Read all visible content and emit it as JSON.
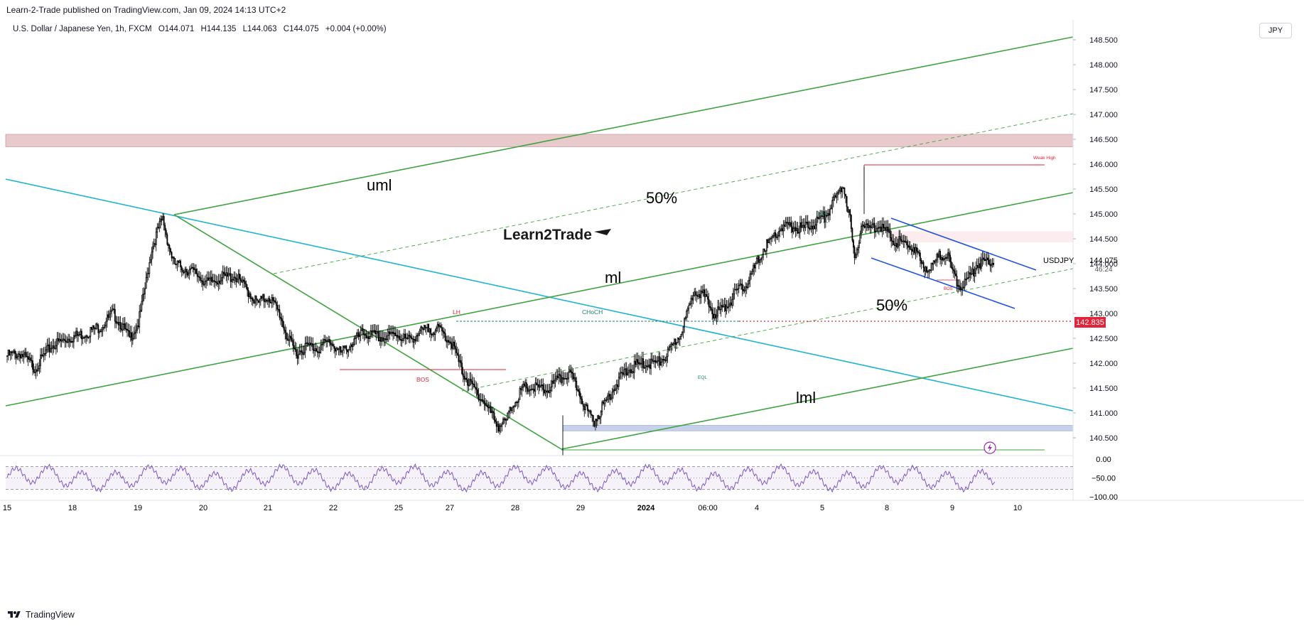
{
  "header": {
    "published": "Learn-2-Trade published on TradingView.com, Jan 09, 2024 14:13 UTC+2",
    "legend": {
      "symbol": "U.S. Dollar / Japanese Yen, 1h, FXCM",
      "open": "O144.071",
      "high": "H144.135",
      "low": "L144.063",
      "close": "C144.075",
      "change": "+0.004 (+0.00%)"
    },
    "currency_button": "JPY"
  },
  "footer": {
    "brand": "TradingView"
  },
  "colors": {
    "green_line": "#3fa33f",
    "cyan_line": "#1fb3d2",
    "blue_channel": "#2054e0",
    "red_level": "#e0253a",
    "supply_zone": "#e8c9cc",
    "demand_zone": "#c7d1ea",
    "rsi": "#7e57c2",
    "candle": "#000000"
  },
  "chart_data": {
    "type": "candlestick",
    "symbol": "USDJPY",
    "timeframe": "1h",
    "price_axis": {
      "ticks": [
        "148.500",
        "148.000",
        "147.500",
        "147.000",
        "146.500",
        "146.000",
        "145.500",
        "145.000",
        "144.500",
        "144.000",
        "143.500",
        "143.000",
        "142.500",
        "142.000",
        "141.500",
        "141.000",
        "140.500"
      ],
      "ylim": [
        140.15,
        148.85
      ]
    },
    "time_axis": [
      "15",
      "18",
      "19",
      "20",
      "21",
      "22",
      "25",
      "27",
      "28",
      "29",
      "2024",
      "06:00",
      "4",
      "5",
      "8",
      "9",
      "10"
    ],
    "last_price": {
      "symbol": "USDJPY",
      "value": "144.075",
      "countdown": "46:24"
    },
    "level_label": "142.835",
    "annotations": {
      "uml": "uml",
      "ml": "ml",
      "lml": "lml",
      "fifty_upper": "50%",
      "fifty_lower": "50%",
      "lh": "LH",
      "choch": "CHoCH",
      "bos_left": "BOS",
      "bos_right": "BOS",
      "eql": "EQL",
      "weak_high": "Weak High",
      "bos_small": "BOS"
    },
    "watermark": "Learn2Trade",
    "rsi": {
      "ticks": [
        "0.00",
        "−50.00",
        "−100.00"
      ],
      "ylim": [
        -100,
        0
      ],
      "levels": [
        -20,
        -50,
        -80
      ]
    },
    "close_path": [
      [
        0,
        142.15
      ],
      [
        12,
        142.2
      ],
      [
        25,
        141.9
      ],
      [
        40,
        142.35
      ],
      [
        55,
        142.5
      ],
      [
        70,
        142.6
      ],
      [
        85,
        142.75
      ],
      [
        95,
        143.0
      ],
      [
        102,
        142.8
      ],
      [
        110,
        142.5
      ],
      [
        118,
        142.8
      ],
      [
        124,
        143.5
      ],
      [
        130,
        144.3
      ],
      [
        136,
        144.7
      ],
      [
        140,
        144.9
      ],
      [
        145,
        144.4
      ],
      [
        150,
        144.0
      ],
      [
        160,
        143.9
      ],
      [
        170,
        143.8
      ],
      [
        180,
        143.6
      ],
      [
        190,
        143.7
      ],
      [
        205,
        143.75
      ],
      [
        215,
        143.5
      ],
      [
        225,
        143.2
      ],
      [
        235,
        143.35
      ],
      [
        245,
        143.0
      ],
      [
        252,
        142.5
      ],
      [
        260,
        142.2
      ],
      [
        270,
        142.35
      ],
      [
        280,
        142.3
      ],
      [
        290,
        142.45
      ],
      [
        300,
        142.2
      ],
      [
        310,
        142.4
      ],
      [
        320,
        142.6
      ],
      [
        330,
        142.55
      ],
      [
        340,
        142.5
      ],
      [
        350,
        142.6
      ],
      [
        360,
        142.45
      ],
      [
        370,
        142.6
      ],
      [
        380,
        142.7
      ],
      [
        390,
        142.65
      ],
      [
        400,
        142.4
      ],
      [
        408,
        141.9
      ],
      [
        415,
        141.6
      ],
      [
        425,
        141.35
      ],
      [
        435,
        141.0
      ],
      [
        442,
        140.75
      ],
      [
        448,
        140.8
      ],
      [
        455,
        141.2
      ],
      [
        465,
        141.5
      ],
      [
        475,
        141.5
      ],
      [
        485,
        141.45
      ],
      [
        495,
        141.65
      ],
      [
        505,
        141.8
      ],
      [
        515,
        141.4
      ],
      [
        522,
        141.0
      ],
      [
        528,
        140.85
      ],
      [
        535,
        141.1
      ],
      [
        545,
        141.5
      ],
      [
        555,
        141.8
      ],
      [
        565,
        141.95
      ],
      [
        575,
        142.0
      ],
      [
        585,
        142.0
      ],
      [
        595,
        142.2
      ],
      [
        605,
        142.6
      ],
      [
        612,
        143.0
      ],
      [
        618,
        143.5
      ],
      [
        625,
        143.4
      ],
      [
        635,
        143.0
      ],
      [
        645,
        143.1
      ],
      [
        655,
        143.4
      ],
      [
        665,
        143.6
      ],
      [
        672,
        143.9
      ],
      [
        680,
        144.3
      ],
      [
        688,
        144.5
      ],
      [
        695,
        144.7
      ],
      [
        705,
        144.75
      ],
      [
        715,
        144.7
      ],
      [
        725,
        144.8
      ],
      [
        735,
        144.95
      ],
      [
        745,
        145.3
      ],
      [
        752,
        145.6
      ],
      [
        758,
        144.9
      ],
      [
        762,
        144.0
      ],
      [
        768,
        144.8
      ],
      [
        775,
        144.7
      ],
      [
        785,
        144.8
      ],
      [
        795,
        144.5
      ],
      [
        805,
        144.4
      ],
      [
        815,
        144.35
      ],
      [
        822,
        144.0
      ],
      [
        830,
        143.9
      ],
      [
        838,
        144.15
      ],
      [
        845,
        144.2
      ],
      [
        852,
        143.7
      ],
      [
        858,
        143.55
      ],
      [
        865,
        143.7
      ],
      [
        872,
        144.0
      ],
      [
        880,
        144.05
      ],
      [
        888,
        144.08
      ]
    ]
  }
}
